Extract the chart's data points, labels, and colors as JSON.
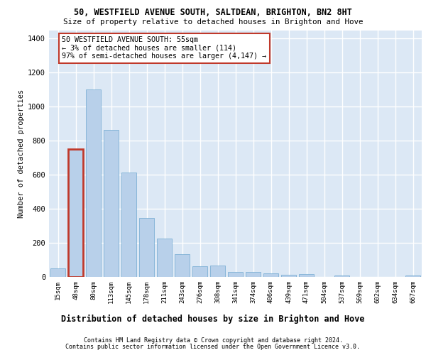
{
  "title1": "50, WESTFIELD AVENUE SOUTH, SALTDEAN, BRIGHTON, BN2 8HT",
  "title2": "Size of property relative to detached houses in Brighton and Hove",
  "xlabel": "Distribution of detached houses by size in Brighton and Hove",
  "ylabel": "Number of detached properties",
  "categories": [
    "15sqm",
    "48sqm",
    "80sqm",
    "113sqm",
    "145sqm",
    "178sqm",
    "211sqm",
    "243sqm",
    "276sqm",
    "308sqm",
    "341sqm",
    "374sqm",
    "406sqm",
    "439sqm",
    "471sqm",
    "504sqm",
    "537sqm",
    "569sqm",
    "602sqm",
    "634sqm",
    "667sqm"
  ],
  "values": [
    50,
    750,
    1100,
    865,
    615,
    345,
    225,
    135,
    62,
    68,
    30,
    30,
    20,
    12,
    15,
    0,
    10,
    0,
    0,
    0,
    10
  ],
  "bar_color": "#b8d0ea",
  "bar_edge_color": "#6fa8d0",
  "highlight_bar_index": 1,
  "highlight_bar_edge_color": "#c0392b",
  "annotation_text": "50 WESTFIELD AVENUE SOUTH: 55sqm\n← 3% of detached houses are smaller (114)\n97% of semi-detached houses are larger (4,147) →",
  "annotation_box_facecolor": "#ffffff",
  "annotation_box_edgecolor": "#c0392b",
  "ylim": [
    0,
    1450
  ],
  "yticks": [
    0,
    200,
    400,
    600,
    800,
    1000,
    1200,
    1400
  ],
  "footnote1": "Contains HM Land Registry data © Crown copyright and database right 2024.",
  "footnote2": "Contains public sector information licensed under the Open Government Licence v3.0.",
  "bg_color": "#dce8f5",
  "grid_color": "#ffffff",
  "fig_width": 6.0,
  "fig_height": 5.0,
  "dpi": 100
}
